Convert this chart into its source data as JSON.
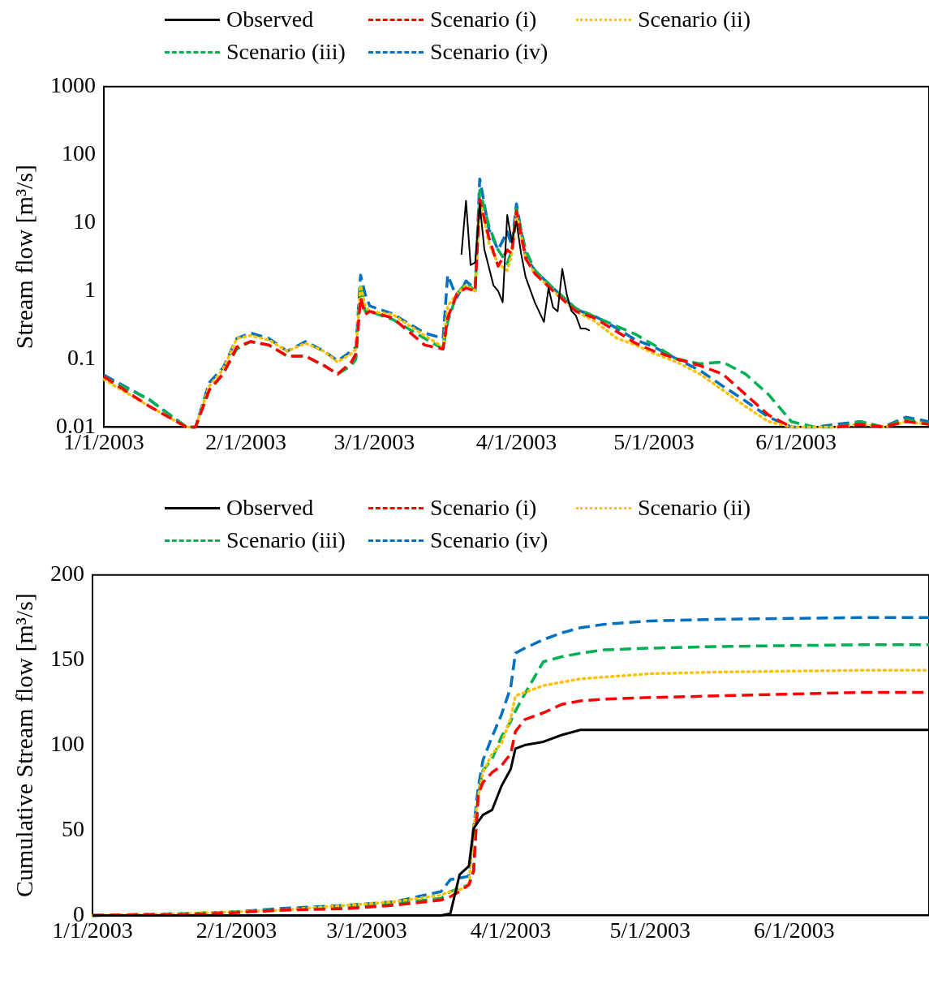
{
  "chart_data": [
    {
      "type": "line",
      "ylabel": "Stream flow [m³/s]",
      "log": "y",
      "legend": "top",
      "grid": false,
      "marker": "none",
      "x": [
        "2003-01-01",
        "2003-01-11",
        "2003-01-19",
        "2003-01-21",
        "2003-01-24",
        "2003-01-27",
        "2003-01-30",
        "2003-02-02",
        "2003-02-06",
        "2003-02-10",
        "2003-02-14",
        "2003-02-18",
        "2003-02-21",
        "2003-02-24",
        "2003-02-25",
        "2003-02-26",
        "2003-02-27",
        "2003-02-28",
        "2003-03-05",
        "2003-03-12",
        "2003-03-16",
        "2003-03-17",
        "2003-03-19",
        "2003-03-21",
        "2003-03-23",
        "2003-03-24",
        "2003-03-26",
        "2003-03-28",
        "2003-03-30",
        "2003-03-31",
        "2003-04-01",
        "2003-04-03",
        "2003-04-05",
        "2003-04-09",
        "2003-04-14",
        "2003-04-18",
        "2003-04-23",
        "2003-04-27",
        "2003-05-01",
        "2003-05-06",
        "2003-05-11",
        "2003-05-16",
        "2003-05-21",
        "2003-05-26",
        "2003-05-31",
        "2003-06-05",
        "2003-06-10",
        "2003-06-15",
        "2003-06-20",
        "2003-06-25",
        "2003-06-30"
      ],
      "xlim": [
        "2003-01-01",
        "2003-06-30"
      ],
      "xticks": [
        {
          "value": "2003-01-01",
          "label": "1/1/2003"
        },
        {
          "value": "2003-02-01",
          "label": "2/1/2003"
        },
        {
          "value": "2003-03-01",
          "label": "3/1/2003"
        },
        {
          "value": "2003-04-01",
          "label": "4/1/2003"
        },
        {
          "value": "2003-05-01",
          "label": "5/1/2003"
        },
        {
          "value": "2003-06-01",
          "label": "6/1/2003"
        }
      ],
      "ylim": [
        0.01,
        1000
      ],
      "yticks": [
        0.01,
        0.1,
        1,
        10,
        100,
        1000
      ],
      "series": [
        {
          "name": "Observed",
          "color": "#000000",
          "line_style": "solid",
          "x": [
            "2003-03-20",
            "2003-03-21",
            "2003-03-22",
            "2003-03-23",
            "2003-03-24",
            "2003-03-25",
            "2003-03-27",
            "2003-03-28",
            "2003-03-29",
            "2003-03-30",
            "2003-03-31",
            "2003-04-01",
            "2003-04-02",
            "2003-04-03",
            "2003-04-05",
            "2003-04-07",
            "2003-04-08",
            "2003-04-09",
            "2003-04-10",
            "2003-04-11",
            "2003-04-12",
            "2003-04-13",
            "2003-04-14",
            "2003-04-15",
            "2003-04-16",
            "2003-04-17"
          ],
          "values": [
            3.4,
            21,
            2.4,
            2.6,
            19,
            4.1,
            1.2,
            1.0,
            0.68,
            13,
            5.2,
            10.5,
            3.6,
            1.6,
            0.68,
            0.35,
            1.1,
            0.57,
            0.5,
            2.1,
            0.87,
            0.51,
            0.43,
            0.28,
            0.28,
            0.26
          ]
        },
        {
          "name": "Scenario (i)",
          "color": "#ff0000",
          "line_style": "dashed",
          "values": [
            0.055,
            0.02,
            0.01,
            0.01,
            0.035,
            0.06,
            0.15,
            0.18,
            0.16,
            0.11,
            0.11,
            0.08,
            0.06,
            0.09,
            0.12,
            0.8,
            0.45,
            0.5,
            0.4,
            0.16,
            0.14,
            0.4,
            0.9,
            1.1,
            1.0,
            22,
            6,
            2.3,
            4,
            3.5,
            15,
            3,
            1.8,
            1.0,
            0.5,
            0.4,
            0.25,
            0.17,
            0.13,
            0.1,
            0.08,
            0.06,
            0.03,
            0.015,
            0.01,
            null,
            0.01,
            0.011,
            0.01,
            0.012,
            0.011
          ]
        },
        {
          "name": "Scenario (ii)",
          "color": "#ffc000",
          "line_style": "dotted",
          "values": [
            0.05,
            0.02,
            0.01,
            0.01,
            0.04,
            0.07,
            0.2,
            0.22,
            0.19,
            0.13,
            0.17,
            0.13,
            0.09,
            0.12,
            0.14,
            1.2,
            0.6,
            0.5,
            0.45,
            0.22,
            0.15,
            0.6,
            0.9,
            1.2,
            1.0,
            22,
            5,
            2.5,
            2.0,
            3.5,
            14,
            3,
            1.8,
            1.0,
            0.5,
            0.36,
            0.2,
            0.16,
            0.12,
            0.09,
            0.06,
            0.035,
            0.02,
            0.012,
            0.01,
            0.01,
            0.01,
            0.011,
            0.01,
            0.012,
            0.011
          ]
        },
        {
          "name": "Scenario (iii)",
          "color": "#00b050",
          "line_style": "dashed",
          "values": [
            0.055,
            0.025,
            0.01,
            0.01,
            0.035,
            0.06,
            0.14,
            0.18,
            0.16,
            0.11,
            0.11,
            0.08,
            0.06,
            0.08,
            0.1,
            1.3,
            0.5,
            0.5,
            0.38,
            0.2,
            0.14,
            0.35,
            0.9,
            1.3,
            1.0,
            30,
            9,
            4,
            2.5,
            4,
            16,
            4,
            2,
            1.1,
            0.55,
            0.42,
            0.3,
            0.23,
            0.16,
            0.1,
            0.085,
            0.09,
            0.06,
            0.03,
            0.012,
            0.01,
            0.01,
            0.012,
            0.01,
            0.013,
            0.011
          ]
        },
        {
          "name": "Scenario (iv)",
          "color": "#0070c0",
          "line_style": "dashed",
          "values": [
            0.058,
            0.025,
            0.01,
            0.01,
            0.045,
            0.074,
            0.2,
            0.24,
            0.2,
            0.13,
            0.18,
            0.13,
            0.094,
            0.13,
            0.15,
            1.7,
            0.9,
            0.6,
            0.46,
            0.24,
            0.2,
            1.7,
            0.8,
            1.4,
            1.05,
            44,
            8,
            4,
            7.4,
            4.6,
            19,
            3.2,
            2.0,
            1.1,
            0.53,
            0.43,
            0.28,
            0.19,
            0.15,
            0.1,
            0.068,
            0.04,
            0.024,
            0.014,
            0.01,
            0.01,
            0.011,
            0.012,
            0.01,
            0.014,
            0.012
          ]
        }
      ]
    },
    {
      "type": "line",
      "ylabel": "Cumulative Stream flow [m³/s]",
      "legend": "top",
      "grid": false,
      "marker": "none",
      "x": [
        "2003-01-01",
        "2003-01-21",
        "2003-01-31",
        "2003-02-10",
        "2003-02-25",
        "2003-03-07",
        "2003-03-17",
        "2003-03-19",
        "2003-03-21",
        "2003-03-23",
        "2003-03-24",
        "2003-03-25",
        "2003-03-26",
        "2003-03-28",
        "2003-03-30",
        "2003-04-01",
        "2003-04-02",
        "2003-04-04",
        "2003-04-08",
        "2003-04-12",
        "2003-04-16",
        "2003-04-21",
        "2003-05-01",
        "2003-05-16",
        "2003-05-31",
        "2003-06-15",
        "2003-06-30"
      ],
      "xlim": [
        "2003-01-01",
        "2003-06-30"
      ],
      "xticks": [
        {
          "value": "2003-01-01",
          "label": "1/1/2003"
        },
        {
          "value": "2003-02-01",
          "label": "2/1/2003"
        },
        {
          "value": "2003-03-01",
          "label": "3/1/2003"
        },
        {
          "value": "2003-04-01",
          "label": "4/1/2003"
        },
        {
          "value": "2003-05-01",
          "label": "5/1/2003"
        },
        {
          "value": "2003-06-01",
          "label": "6/1/2003"
        }
      ],
      "ylim": [
        0,
        200
      ],
      "yticks": [
        0,
        50,
        100,
        150,
        200
      ],
      "series": [
        {
          "name": "Observed",
          "color": "#000000",
          "line_style": "solid",
          "values": [
            0,
            0,
            0,
            0,
            0,
            0,
            0,
            1,
            24,
            29,
            51,
            55,
            59,
            62,
            76,
            86,
            98,
            100,
            102,
            106,
            109,
            109,
            109,
            109,
            109,
            109,
            109
          ]
        },
        {
          "name": "Scenario (i)",
          "color": "#ff0000",
          "line_style": "dashed",
          "values": [
            0,
            0.5,
            1.5,
            3,
            4,
            6,
            9,
            11,
            14,
            18,
            26,
            71,
            78,
            84,
            88,
            95,
            108,
            115,
            119,
            124,
            126,
            127,
            128,
            129,
            130,
            131,
            131
          ]
        },
        {
          "name": "Scenario (ii)",
          "color": "#ffc000",
          "line_style": "dotted",
          "values": [
            0,
            1,
            2,
            3,
            6,
            8,
            12,
            14,
            15,
            18,
            51,
            70,
            84,
            95,
            101,
            116,
            129,
            131,
            135,
            137,
            139,
            140,
            142,
            143,
            143.5,
            144,
            144
          ]
        },
        {
          "name": "Scenario (iii)",
          "color": "#00b050",
          "line_style": "dashed",
          "values": [
            0,
            1,
            2,
            3,
            5,
            7,
            10,
            14,
            16,
            18,
            26,
            71,
            85,
            92,
            105,
            114,
            120,
            130,
            149,
            152,
            154,
            156,
            157,
            158,
            158.5,
            159,
            159
          ]
        },
        {
          "name": "Scenario (iv)",
          "color": "#0070c0",
          "line_style": "dashed",
          "values": [
            0,
            1,
            2,
            4,
            6,
            8,
            14,
            21,
            22,
            23,
            51,
            75,
            91,
            105,
            118,
            134,
            154,
            157,
            162,
            166,
            169,
            171,
            173,
            174,
            174.5,
            175,
            175
          ]
        }
      ]
    }
  ]
}
